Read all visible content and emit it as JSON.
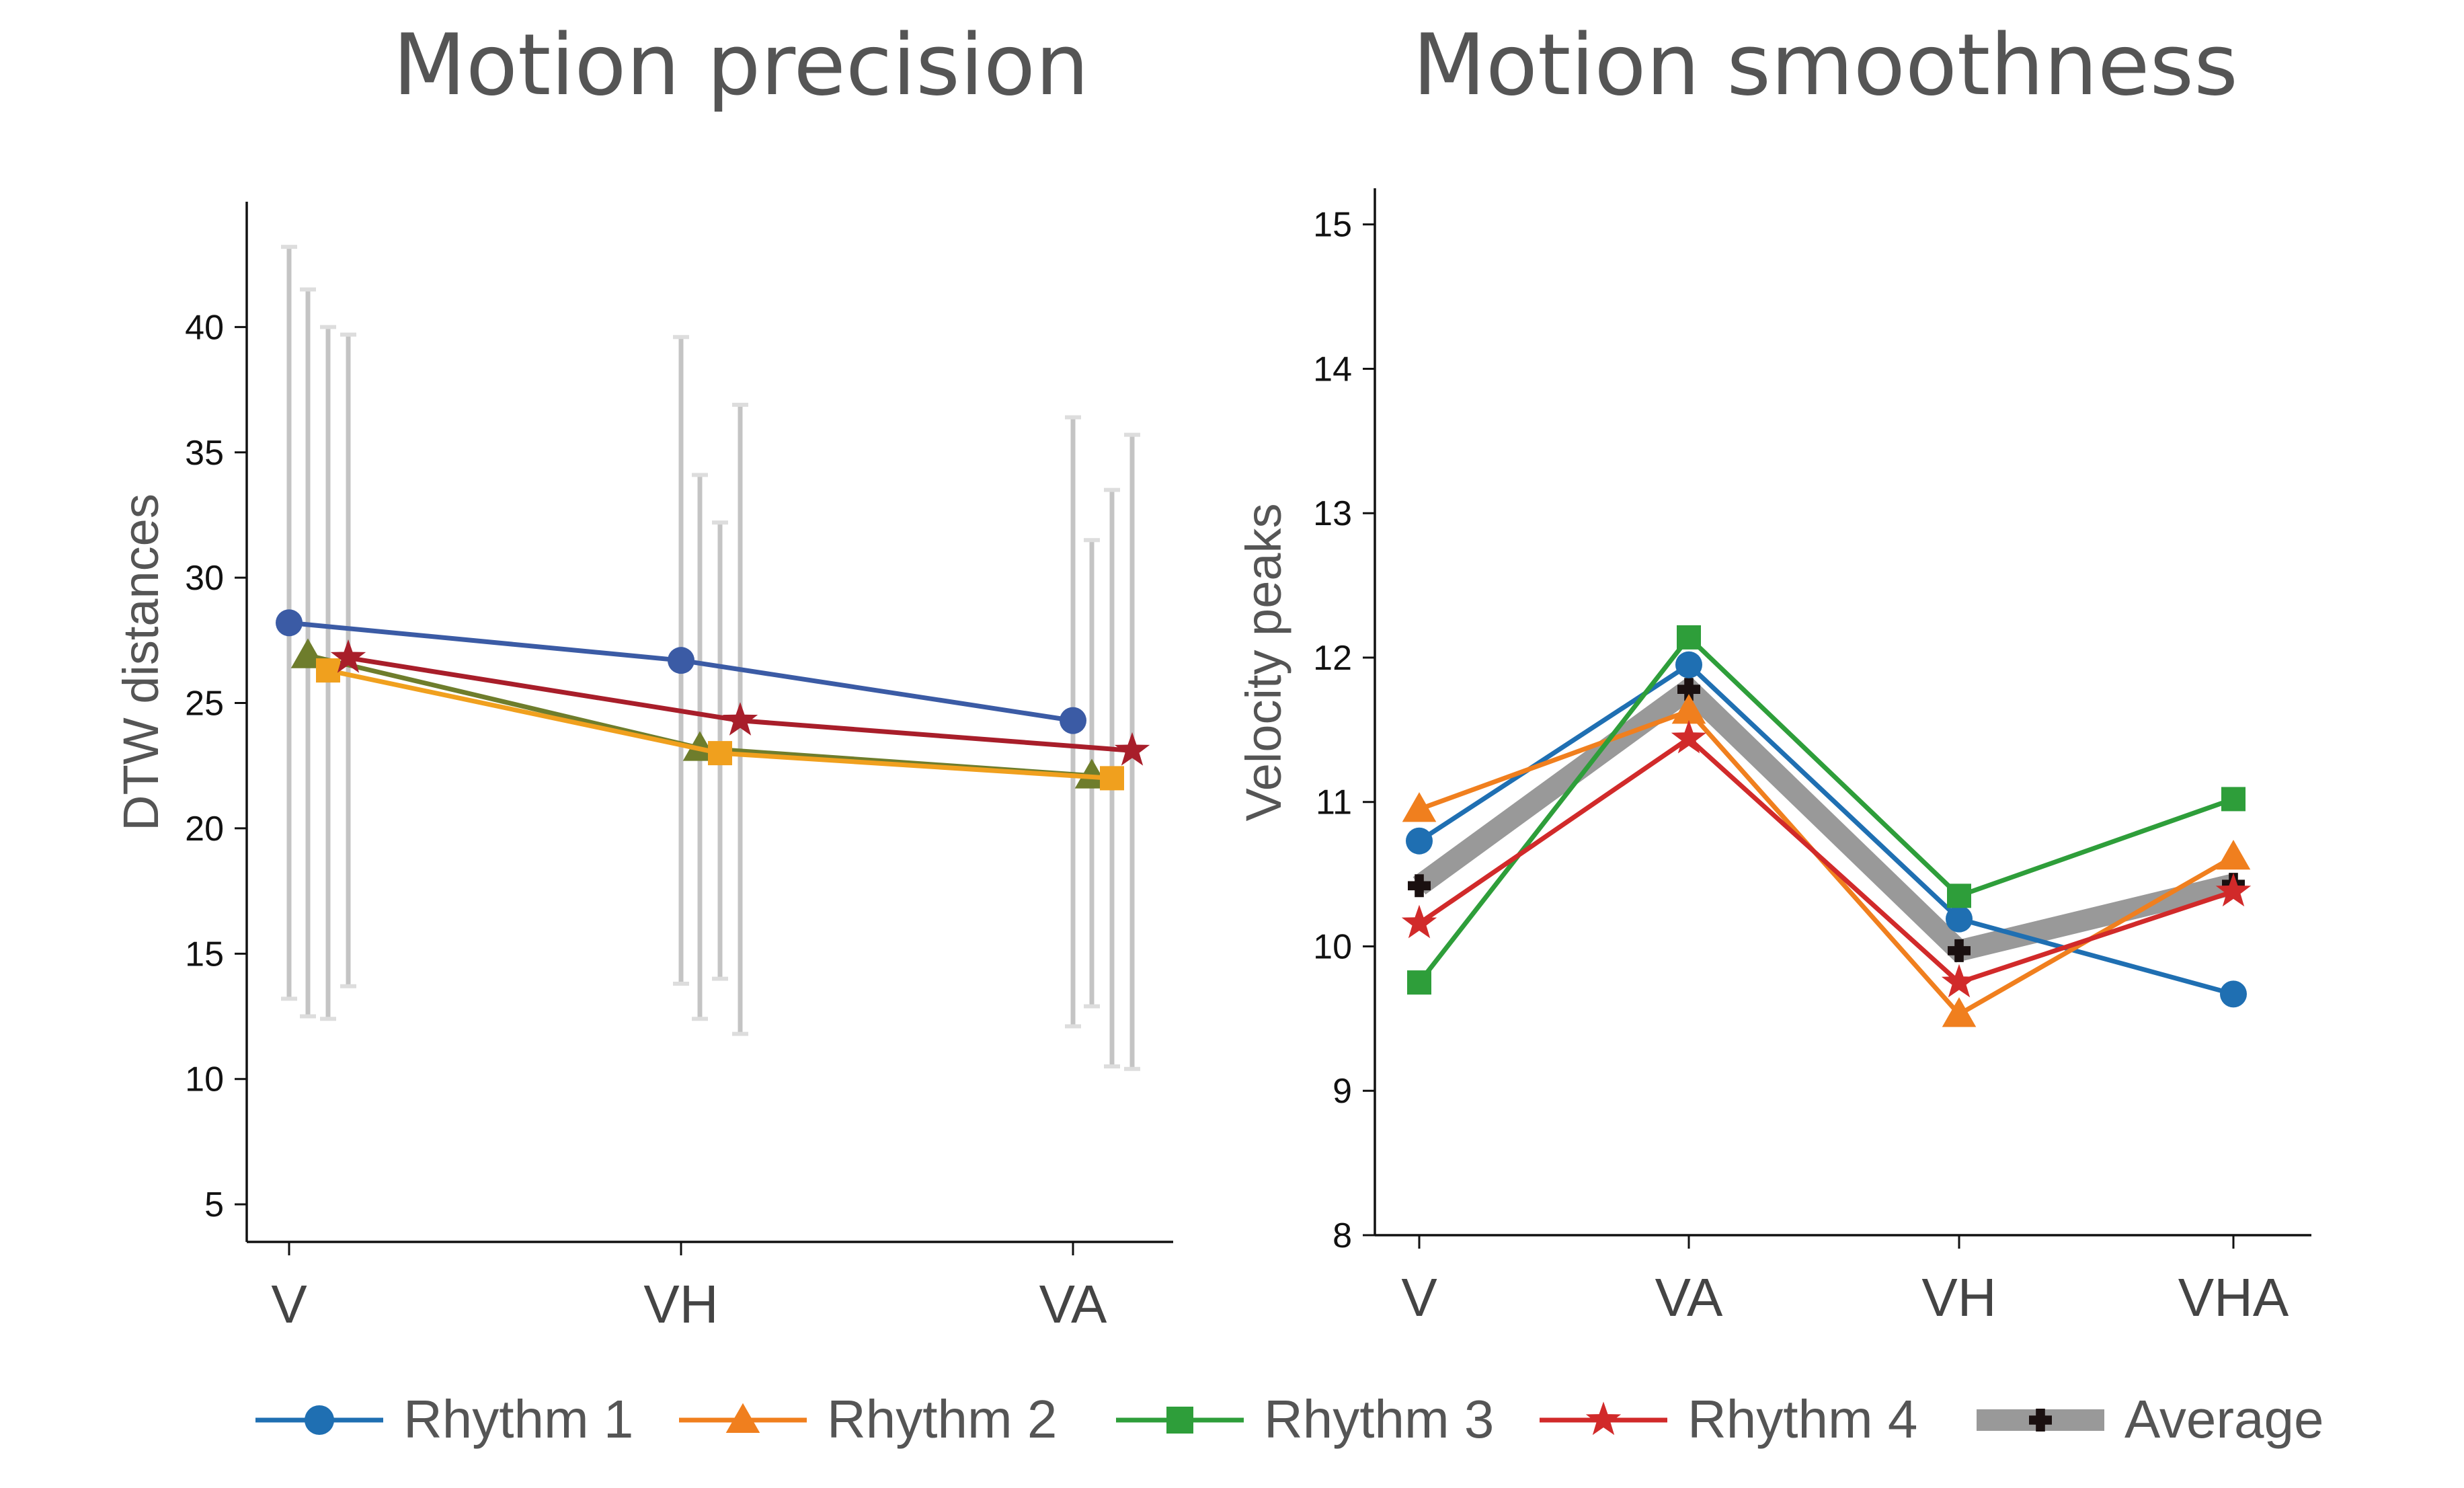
{
  "chart_data": [
    {
      "type": "line",
      "title": "Motion precision",
      "xlabel": "",
      "ylabel": "DTW distances",
      "categories": [
        "V",
        "VH",
        "VA"
      ],
      "ylim": [
        3.5,
        45
      ],
      "yticks": [
        5,
        10,
        15,
        20,
        25,
        30,
        35,
        40
      ],
      "grid": false,
      "series": [
        {
          "name": "Rhythm 1",
          "color": "#3b5ba5",
          "marker": "circle",
          "values": [
            28.2,
            26.7,
            24.3
          ],
          "err_low": [
            13.2,
            13.8,
            12.1
          ],
          "err_high": [
            43.2,
            39.6,
            36.4
          ]
        },
        {
          "name": "Rhythm 2",
          "color": "#6e7d2c",
          "marker": "triangle",
          "values": [
            26.9,
            23.2,
            22.1
          ],
          "err_low": [
            12.5,
            12.4,
            12.9
          ],
          "err_high": [
            41.5,
            34.1,
            31.5
          ]
        },
        {
          "name": "Rhythm 3",
          "color": "#f0a01e",
          "marker": "square",
          "values": [
            26.3,
            23.0,
            22.0
          ],
          "err_low": [
            12.4,
            14.0,
            10.5
          ],
          "err_high": [
            40.0,
            32.2,
            33.5
          ]
        },
        {
          "name": "Rhythm 4",
          "color": "#a81e2a",
          "marker": "star",
          "values": [
            26.8,
            24.3,
            23.1
          ],
          "err_low": [
            13.7,
            11.8,
            10.4
          ],
          "err_high": [
            39.7,
            36.9,
            35.7
          ]
        }
      ]
    },
    {
      "type": "line",
      "title": "Motion smoothness",
      "xlabel": "",
      "ylabel": "Velocity peaks",
      "categories": [
        "V",
        "VA",
        "VH",
        "VHA"
      ],
      "ylim": [
        8,
        15.25
      ],
      "yticks": [
        8,
        9,
        10,
        11,
        12,
        13,
        14,
        15
      ],
      "grid": false,
      "legend": "bottom",
      "series": [
        {
          "name": "Average",
          "color": "#999999",
          "marker": "plus",
          "values": [
            10.42,
            11.78,
            9.97,
            10.43
          ]
        },
        {
          "name": "Rhythm 1",
          "color": "#1f6fb2",
          "marker": "circle",
          "values": [
            10.73,
            11.95,
            10.19,
            9.67
          ]
        },
        {
          "name": "Rhythm 2",
          "color": "#f07f1e",
          "marker": "triangle",
          "values": [
            10.95,
            11.63,
            9.53,
            10.62
          ]
        },
        {
          "name": "Rhythm 3",
          "color": "#2e9e3a",
          "marker": "square",
          "values": [
            9.75,
            12.14,
            10.35,
            11.02
          ]
        },
        {
          "name": "Rhythm 4",
          "color": "#d12a2a",
          "marker": "star",
          "values": [
            10.16,
            11.44,
            9.75,
            10.38
          ]
        }
      ]
    }
  ]
}
